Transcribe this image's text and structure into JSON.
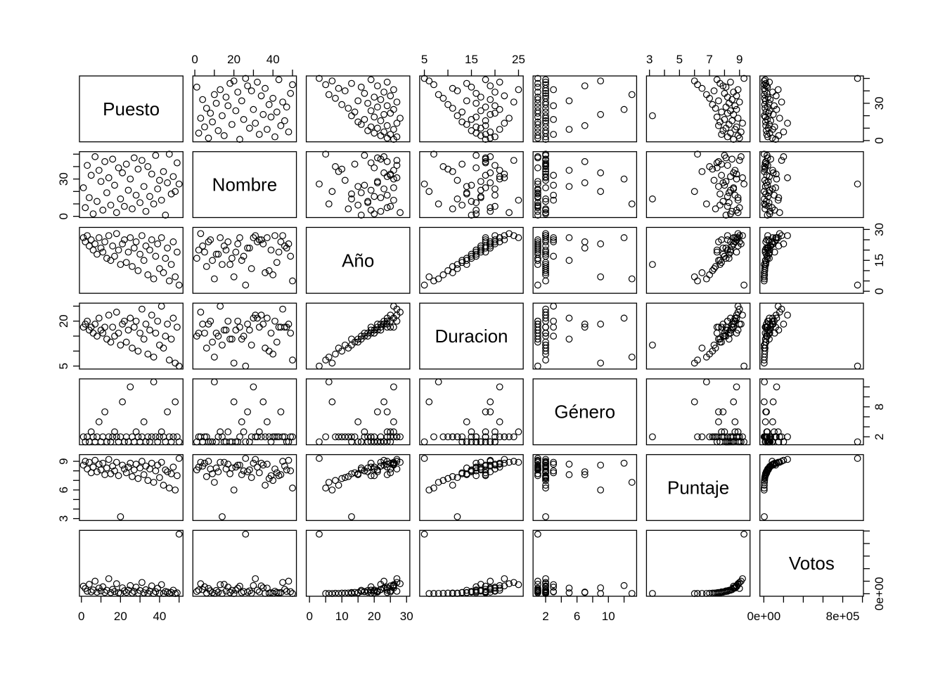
{
  "chart_data": {
    "type": "scatter-matrix",
    "title": "",
    "description": "R pairs() scatterplot matrix of 7 variables with alternating outer axes",
    "point_style": {
      "shape": "open-circle",
      "stroke": "#000000"
    },
    "grid": false,
    "legend": "none",
    "columns_order": [
      "Puesto",
      "Nombre",
      "Año",
      "Duracion",
      "Género",
      "Puntaje",
      "Votos"
    ],
    "variables": [
      {
        "name": "Puesto",
        "domain": [
          -1,
          52
        ],
        "ticks": [
          0,
          10,
          20,
          30,
          40,
          50
        ],
        "x_axis_side": "bottom",
        "y_axis_side": "right",
        "x_tick_labels": [
          {
            "v": 0,
            "t": "0"
          },
          {
            "v": 20,
            "t": "20"
          },
          {
            "v": 40,
            "t": "40"
          }
        ],
        "y_tick_labels": [
          {
            "v": 0,
            "t": "0"
          },
          {
            "v": 30,
            "t": "30"
          }
        ]
      },
      {
        "name": "Nombre",
        "domain": [
          -1,
          52
        ],
        "ticks": [
          0,
          10,
          20,
          30,
          40,
          50
        ],
        "x_axis_side": "top",
        "y_axis_side": "left",
        "x_tick_labels": [
          {
            "v": 0,
            "t": "0"
          },
          {
            "v": 20,
            "t": "20"
          },
          {
            "v": 40,
            "t": "40"
          }
        ],
        "y_tick_labels": [
          {
            "v": 0,
            "t": "0"
          },
          {
            "v": 30,
            "t": "30"
          }
        ]
      },
      {
        "name": "Año",
        "domain": [
          -1,
          31
        ],
        "ticks": [
          0,
          5,
          10,
          15,
          20,
          25,
          30
        ],
        "x_axis_side": "bottom",
        "y_axis_side": "right",
        "x_tick_labels": [
          {
            "v": 0,
            "t": "0"
          },
          {
            "v": 10,
            "t": "10"
          },
          {
            "v": 20,
            "t": "20"
          },
          {
            "v": 30,
            "t": "30"
          }
        ],
        "y_tick_labels": [
          {
            "v": 0,
            "t": "0"
          },
          {
            "v": 15,
            "t": "15"
          },
          {
            "v": 30,
            "t": "30"
          }
        ]
      },
      {
        "name": "Duracion",
        "domain": [
          4,
          26
        ],
        "ticks": [
          5,
          10,
          15,
          20,
          25
        ],
        "x_axis_side": "top",
        "y_axis_side": "left",
        "x_tick_labels": [
          {
            "v": 5,
            "t": "5"
          },
          {
            "v": 15,
            "t": "15"
          },
          {
            "v": 25,
            "t": "25"
          }
        ],
        "y_tick_labels": [
          {
            "v": 5,
            "t": "5"
          },
          {
            "v": 20,
            "t": "20"
          }
        ]
      },
      {
        "name": "Género",
        "domain": [
          0.4,
          13.6
        ],
        "ticks": [
          2,
          4,
          6,
          8,
          10,
          12
        ],
        "x_axis_side": "bottom",
        "y_axis_side": "right",
        "x_tick_labels": [
          {
            "v": 2,
            "t": "2"
          },
          {
            "v": 6,
            "t": "6"
          },
          {
            "v": 10,
            "t": "10"
          }
        ],
        "y_tick_labels": [
          {
            "v": 2,
            "t": "2"
          },
          {
            "v": 8,
            "t": "8"
          }
        ]
      },
      {
        "name": "Puntaje",
        "domain": [
          2.8,
          9.7
        ],
        "ticks": [
          3,
          4,
          5,
          6,
          7,
          8,
          9
        ],
        "x_axis_side": "top",
        "y_axis_side": "left",
        "x_tick_labels": [
          {
            "v": 3,
            "t": "3"
          },
          {
            "v": 5,
            "t": "5"
          },
          {
            "v": 7,
            "t": "7"
          },
          {
            "v": 9,
            "t": "9"
          }
        ],
        "y_tick_labels": [
          {
            "v": 3,
            "t": "3"
          },
          {
            "v": 6,
            "t": "6"
          },
          {
            "v": 9,
            "t": "9"
          }
        ]
      },
      {
        "name": "Votos",
        "domain": [
          -40000,
          1010000
        ],
        "ticks": [
          0,
          200000,
          400000,
          600000,
          800000,
          1000000
        ],
        "x_axis_side": "bottom",
        "y_axis_side": "right",
        "x_tick_labels": [
          {
            "v": 0,
            "t": "0e+00"
          },
          {
            "v": 800000,
            "t": "8e+05"
          }
        ],
        "y_tick_labels": [
          {
            "v": 0,
            "t": "0e+00"
          }
        ]
      }
    ],
    "observations": [
      [
        1,
        23,
        26,
        18,
        2,
        8.6,
        120000
      ],
      [
        2,
        7,
        24,
        19,
        1,
        9.0,
        85000
      ],
      [
        3,
        41,
        27,
        20,
        2,
        8.2,
        40000
      ],
      [
        4,
        15,
        22,
        17,
        1,
        8.9,
        150000
      ],
      [
        5,
        33,
        25,
        18,
        3,
        7.8,
        30000
      ],
      [
        6,
        2,
        20,
        16,
        2,
        8.4,
        60000
      ],
      [
        7,
        48,
        23,
        19,
        1,
        9.1,
        200000
      ],
      [
        8,
        12,
        18,
        15,
        2,
        7.9,
        25000
      ],
      [
        9,
        37,
        26,
        21,
        5,
        8.7,
        90000
      ],
      [
        10,
        28,
        21,
        17,
        1,
        8.1,
        45000
      ],
      [
        11,
        5,
        19,
        16,
        2,
        8.8,
        110000
      ],
      [
        12,
        44,
        24,
        18,
        7,
        7.6,
        20000
      ],
      [
        13,
        19,
        16,
        14,
        1,
        8.3,
        55000
      ],
      [
        14,
        31,
        27,
        22,
        2,
        9.2,
        240000
      ],
      [
        15,
        9,
        15,
        13,
        1,
        7.7,
        18000
      ],
      [
        16,
        46,
        22,
        18,
        2,
        8.5,
        70000
      ],
      [
        17,
        25,
        17,
        15,
        3,
        8.0,
        35000
      ],
      [
        18,
        3,
        28,
        23,
        2,
        8.9,
        160000
      ],
      [
        19,
        39,
        20,
        16,
        1,
        7.5,
        15000
      ],
      [
        20,
        14,
        13,
        12,
        2,
        3.2,
        5000
      ],
      [
        21,
        35,
        23,
        19,
        9,
        8.6,
        95000
      ],
      [
        22,
        8,
        25,
        20,
        1,
        8.2,
        48000
      ],
      [
        23,
        42,
        14,
        13,
        2,
        7.8,
        22000
      ],
      [
        24,
        21,
        19,
        17,
        1,
        8.4,
        58000
      ],
      [
        25,
        30,
        26,
        21,
        12,
        8.8,
        130000
      ],
      [
        26,
        6,
        12,
        11,
        2,
        7.4,
        12000
      ],
      [
        27,
        47,
        21,
        18,
        1,
        8.1,
        38000
      ],
      [
        28,
        17,
        24,
        20,
        3,
        8.7,
        105000
      ],
      [
        29,
        38,
        10,
        10,
        2,
        7.2,
        9000
      ],
      [
        30,
        11,
        18,
        16,
        1,
        8.3,
        52000
      ],
      [
        31,
        45,
        27,
        24,
        2,
        9.0,
        180000
      ],
      [
        32,
        24,
        15,
        14,
        5,
        7.6,
        16000
      ],
      [
        33,
        4,
        22,
        19,
        1,
        8.5,
        64000
      ],
      [
        34,
        40,
        8,
        9,
        2,
        7.0,
        7000
      ],
      [
        35,
        16,
        20,
        17,
        1,
        8.2,
        42000
      ],
      [
        36,
        34,
        25,
        22,
        2,
        8.8,
        125000
      ],
      [
        37,
        10,
        6,
        8,
        13,
        6.8,
        5500
      ],
      [
        38,
        49,
        17,
        16,
        2,
        8.0,
        33000
      ],
      [
        39,
        22,
        23,
        20,
        1,
        8.6,
        88000
      ],
      [
        40,
        29,
        11,
        12,
        2,
        7.3,
        10000
      ],
      [
        41,
        13,
        26,
        25,
        3,
        8.9,
        145000
      ],
      [
        42,
        36,
        9,
        11,
        2,
        6.5,
        4800
      ],
      [
        43,
        1,
        16,
        15,
        1,
        8.1,
        36000
      ],
      [
        44,
        27,
        21,
        19,
        7,
        7.9,
        26000
      ],
      [
        45,
        50,
        5,
        7,
        2,
        6.2,
        3800
      ],
      [
        46,
        18,
        13,
        14,
        1,
        7.7,
        19000
      ],
      [
        47,
        32,
        24,
        21,
        2,
        8.4,
        56000
      ],
      [
        48,
        20,
        7,
        6,
        9,
        6.0,
        3200
      ],
      [
        49,
        43,
        19,
        18,
        2,
        7.5,
        14000
      ],
      [
        50,
        26,
        3,
        5,
        1,
        9.3,
        950000
      ]
    ]
  }
}
